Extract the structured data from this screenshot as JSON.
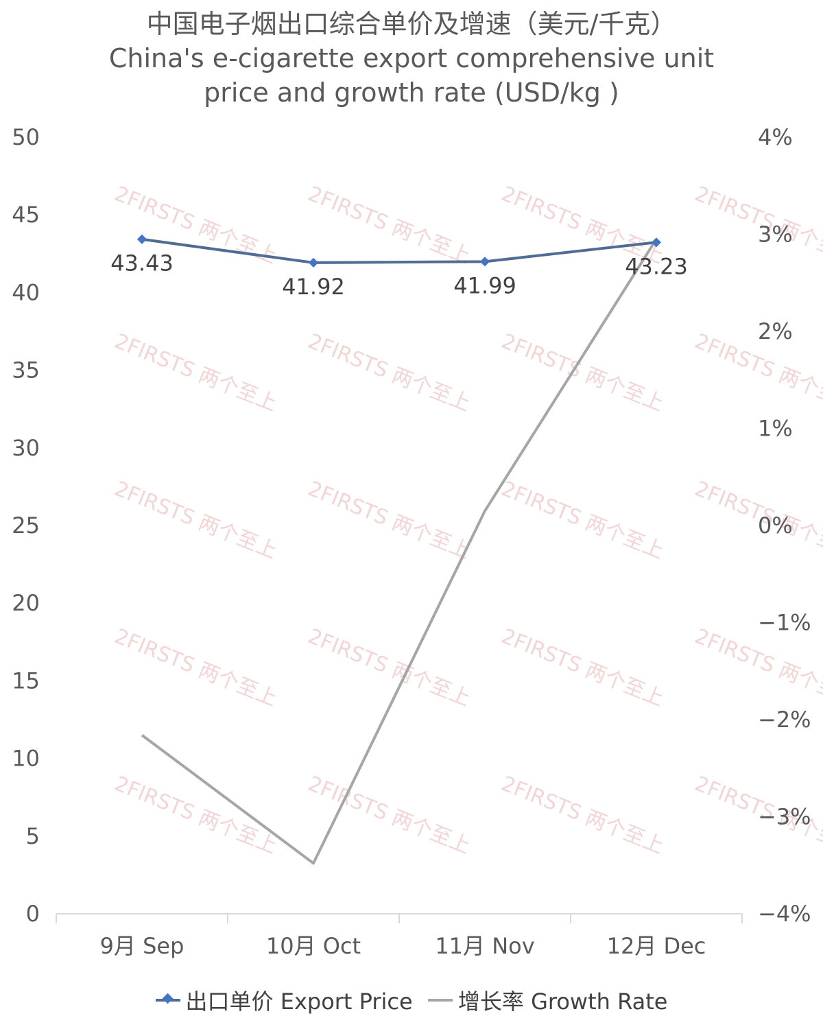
{
  "chart_data": {
    "type": "line",
    "title": "中国电子烟出口综合单价及增速（美元/千克）",
    "subtitle_line_1": "China's e-cigarette export comprehensive unit",
    "subtitle_line_2": "price and growth rate (USD/kg )",
    "categories": [
      "9月 Sep",
      "10月 Oct",
      "11月 Nov",
      "12月 Dec"
    ],
    "y_left": {
      "min": 0,
      "max": 50,
      "ticks": [
        "0",
        "5",
        "10",
        "15",
        "20",
        "25",
        "30",
        "35",
        "40",
        "45",
        "50"
      ]
    },
    "y_right": {
      "min": -4,
      "max": 4,
      "ticks": [
        "−4%",
        "−3%",
        "−2%",
        "−1%",
        "0%",
        "1%",
        "2%",
        "3%",
        "4%"
      ]
    },
    "series": [
      {
        "name": "出口单价 Export Price",
        "axis": "left",
        "color": "#4f6c96",
        "marker_color": "#4472c4",
        "values": [
          43.43,
          41.92,
          41.99,
          43.23
        ],
        "labels": [
          "43.43",
          "41.92",
          "41.99",
          "43.23"
        ]
      },
      {
        "name": "增长率 Growth Rate",
        "axis": "right",
        "color": "#a6a6a6",
        "values": [
          -2.16,
          -3.48,
          0.15,
          2.95
        ]
      }
    ],
    "legend_position": "bottom",
    "grid": false
  },
  "watermark": {
    "text": "2FIRSTS 两个至上",
    "color": "#e8b3b3"
  }
}
